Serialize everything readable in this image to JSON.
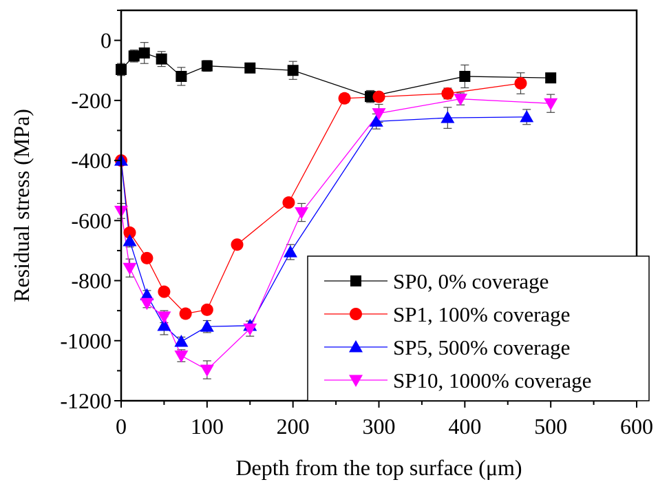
{
  "chart_data": {
    "type": "line",
    "xlabel": "Depth from the top surface (μm)",
    "ylabel": "Residual stress (MPa)",
    "xlim": [
      0,
      600
    ],
    "ylim": [
      -1200,
      100
    ],
    "xticks": [
      0,
      100,
      200,
      300,
      400,
      500,
      600
    ],
    "yticks": [
      0,
      -200,
      -400,
      -600,
      -800,
      -1000,
      -1200
    ],
    "grid": false,
    "legend_position": "bottom-right",
    "series": [
      {
        "name": "SP0, 0% coverage",
        "color": "#000000",
        "marker": "square",
        "x": [
          0,
          15,
          27,
          47,
          70,
          100,
          150,
          200,
          290,
          400,
          500
        ],
        "y": [
          -97,
          -52,
          -42,
          -62,
          -120,
          -85,
          -92,
          -100,
          -187,
          -120,
          -125
        ],
        "err": [
          20,
          20,
          35,
          25,
          30,
          18,
          12,
          30,
          20,
          38,
          10
        ]
      },
      {
        "name": "SP1, 100% coverage",
        "color": "#ff0000",
        "marker": "circle",
        "x": [
          0,
          10,
          30,
          50,
          75,
          100,
          135,
          195,
          260,
          300,
          380,
          465
        ],
        "y": [
          -400,
          -640,
          -725,
          -837,
          -910,
          -897,
          -680,
          -540,
          -193,
          -188,
          -177,
          -143
        ],
        "err": [
          10,
          12,
          10,
          12,
          15,
          12,
          10,
          10,
          15,
          10,
          18,
          35
        ]
      },
      {
        "name": "SP5, 500% coverage",
        "color": "#0000ff",
        "marker": "triangle-up",
        "x": [
          0,
          10,
          30,
          50,
          70,
          100,
          150,
          197,
          297,
          380,
          472
        ],
        "y": [
          -400,
          -668,
          -848,
          -950,
          -1003,
          -953,
          -950,
          -705,
          -270,
          -258,
          -255
        ],
        "err": [
          10,
          20,
          15,
          30,
          15,
          20,
          15,
          25,
          25,
          35,
          25
        ]
      },
      {
        "name": "SP10, 1000% coverage",
        "color": "#ff00ff",
        "marker": "triangle-down",
        "x": [
          0,
          10,
          30,
          50,
          70,
          100,
          150,
          210,
          300,
          395,
          500
        ],
        "y": [
          -568,
          -758,
          -875,
          -920,
          -1050,
          -1097,
          -960,
          -573,
          -243,
          -195,
          -210
        ],
        "err": [
          25,
          30,
          15,
          20,
          20,
          30,
          25,
          30,
          30,
          20,
          30
        ]
      }
    ]
  }
}
